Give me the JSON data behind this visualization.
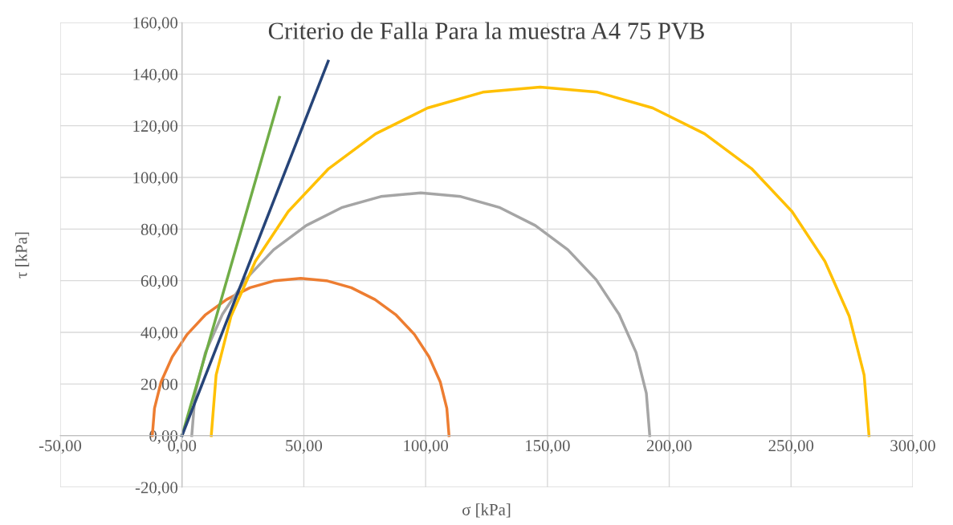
{
  "chart_data": {
    "type": "line",
    "title": "Criterio de Falla Para la muestra A4 75 PVB",
    "xlabel": "σ [kPa]",
    "ylabel": "τ [kPa]",
    "xlim": [
      -50,
      300
    ],
    "ylim": [
      -20,
      160
    ],
    "xticks": [
      {
        "value": -50,
        "label": "-50,00"
      },
      {
        "value": 0,
        "label": "0,00"
      },
      {
        "value": 50,
        "label": "50,00"
      },
      {
        "value": 100,
        "label": "100,00"
      },
      {
        "value": 150,
        "label": "150,00"
      },
      {
        "value": 200,
        "label": "200,00"
      },
      {
        "value": 250,
        "label": "250,00"
      },
      {
        "value": 300,
        "label": "300,00"
      }
    ],
    "yticks": [
      {
        "value": -20,
        "label": "-20,00"
      },
      {
        "value": 0,
        "label": "0,00"
      },
      {
        "value": 20,
        "label": "20,00"
      },
      {
        "value": 40,
        "label": "40,00"
      },
      {
        "value": 60,
        "label": "60,00"
      },
      {
        "value": 80,
        "label": "80,00"
      },
      {
        "value": 100,
        "label": "100,00"
      },
      {
        "value": 120,
        "label": "120,00"
      },
      {
        "value": 140,
        "label": "140,00"
      },
      {
        "value": 160,
        "label": "160,00"
      }
    ],
    "grid": true,
    "legend": false,
    "marker": "none",
    "line_style": "solid",
    "series": [
      {
        "color": "#ed7d31",
        "x": [
          -12.2,
          -11.3,
          -8.6,
          -4.0,
          2.1,
          9.5,
          18.3,
          27.9,
          38.1,
          48.7,
          59.3,
          69.5,
          79.2,
          87.9,
          95.4,
          101.4,
          106.0,
          108.7,
          109.6
        ],
        "values": [
          0,
          10.6,
          20.8,
          30.5,
          39.2,
          46.7,
          52.7,
          57.3,
          60.0,
          60.9,
          60.0,
          57.3,
          52.7,
          46.7,
          39.2,
          30.5,
          20.8,
          10.6,
          0
        ]
      },
      {
        "color": "#a5a5a5",
        "x": [
          4,
          5.4,
          9.6,
          16.6,
          26,
          37.6,
          51,
          65.8,
          81.6,
          98,
          114.4,
          130.2,
          145,
          158.4,
          170,
          179.4,
          186.4,
          190.6,
          192
        ],
        "values": [
          0,
          16.4,
          32.2,
          47,
          60.4,
          72,
          81.4,
          88.4,
          92.6,
          94,
          92.6,
          88.4,
          81.4,
          72,
          60.4,
          47,
          32.2,
          16.4,
          0
        ]
      },
      {
        "color": "#ffc000",
        "x": [
          12,
          14,
          20.1,
          30.1,
          43.6,
          60.2,
          79.5,
          100.8,
          123.5,
          147,
          170.5,
          193.2,
          214.5,
          233.8,
          250.4,
          263.9,
          273.9,
          280,
          282
        ],
        "values": [
          0,
          23.5,
          46.2,
          67.5,
          86.8,
          103.4,
          116.9,
          126.9,
          133,
          135,
          133,
          126.9,
          116.9,
          103.4,
          86.8,
          67.5,
          46.2,
          23.5,
          0
        ]
      },
      {
        "color": "#70ad47",
        "x": [
          0,
          40
        ],
        "values": [
          0,
          131
        ]
      },
      {
        "color": "#264478",
        "x": [
          0,
          60
        ],
        "values": [
          0,
          145
        ]
      }
    ]
  }
}
